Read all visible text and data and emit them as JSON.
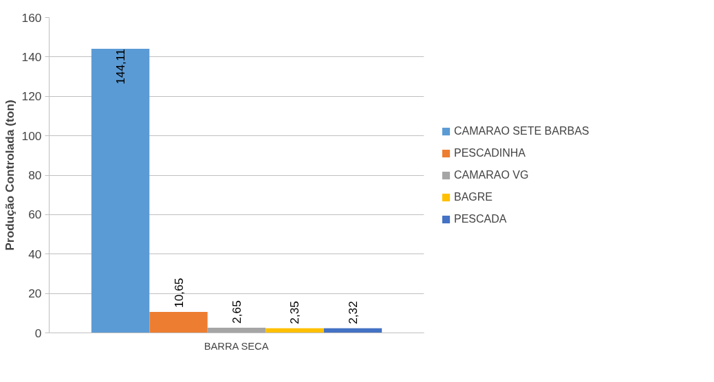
{
  "chart_data": {
    "type": "bar",
    "ylabel": "Produção Controlada (ton)",
    "categories": [
      "BARRA SECA"
    ],
    "series": [
      {
        "name": "CAMARAO SETE BARBAS",
        "color": "#5b9bd5",
        "values": [
          144.11
        ],
        "value_labels": [
          "144,11"
        ]
      },
      {
        "name": "PESCADINHA",
        "color": "#ed7d31",
        "values": [
          10.65
        ],
        "value_labels": [
          "10,65"
        ]
      },
      {
        "name": "CAMARAO VG",
        "color": "#a5a5a5",
        "values": [
          2.65
        ],
        "value_labels": [
          "2,65"
        ]
      },
      {
        "name": "BAGRE",
        "color": "#ffc000",
        "values": [
          2.35
        ],
        "value_labels": [
          "2,35"
        ]
      },
      {
        "name": "PESCADA",
        "color": "#4472c4",
        "values": [
          2.32
        ],
        "value_labels": [
          "2,32"
        ]
      }
    ],
    "ylim": [
      0,
      160
    ],
    "yticks": [
      0,
      20,
      40,
      60,
      80,
      100,
      120,
      140,
      160
    ],
    "grid": "y",
    "legend": "right"
  }
}
